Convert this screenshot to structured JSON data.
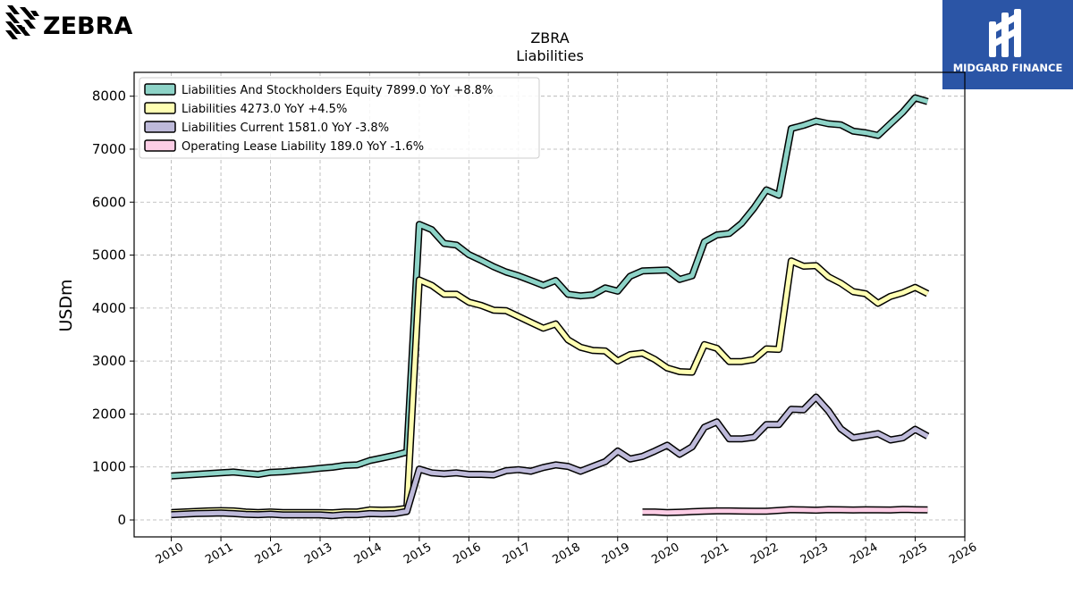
{
  "brand_left": {
    "name": "ZEBRA",
    "icon": "zebra-head-icon"
  },
  "brand_right": {
    "name": "MIDGARD FINANCE",
    "icon": "midgard-monogram-icon",
    "bg_color": "#2b55a6"
  },
  "chart_data": {
    "type": "line",
    "title": "ZBRA",
    "subtitle": "Liabilities",
    "xlabel": "",
    "ylabel": "USDm",
    "xlim": [
      2009.25,
      2026.0
    ],
    "ylim": [
      -320,
      8450
    ],
    "x_ticks": [
      "2010",
      "2011",
      "2012",
      "2013",
      "2014",
      "2015",
      "2016",
      "2017",
      "2018",
      "2019",
      "2020",
      "2021",
      "2022",
      "2023",
      "2024",
      "2025",
      "2026"
    ],
    "y_ticks": [
      "0",
      "1000",
      "2000",
      "3000",
      "4000",
      "5000",
      "6000",
      "7000",
      "8000"
    ],
    "grid": true,
    "legend_position": "top-left",
    "series": [
      {
        "name": "Liabilities And Stockholders Equity",
        "legend": "Liabilities And Stockholders Equity  7899.0 YoY +8.8%",
        "color": "#8dd3c7",
        "points": [
          [
            2010.0,
            830
          ],
          [
            2010.25,
            845
          ],
          [
            2010.5,
            860
          ],
          [
            2010.75,
            875
          ],
          [
            2011.0,
            890
          ],
          [
            2011.25,
            905
          ],
          [
            2011.5,
            880
          ],
          [
            2011.75,
            860
          ],
          [
            2012.0,
            900
          ],
          [
            2012.25,
            910
          ],
          [
            2012.5,
            930
          ],
          [
            2012.75,
            950
          ],
          [
            2013.0,
            975
          ],
          [
            2013.25,
            995
          ],
          [
            2013.5,
            1030
          ],
          [
            2013.75,
            1040
          ],
          [
            2014.0,
            1120
          ],
          [
            2014.25,
            1170
          ],
          [
            2014.5,
            1220
          ],
          [
            2014.75,
            1280
          ],
          [
            2015.0,
            5580
          ],
          [
            2015.25,
            5480
          ],
          [
            2015.5,
            5220
          ],
          [
            2015.75,
            5190
          ],
          [
            2016.0,
            5010
          ],
          [
            2016.25,
            4900
          ],
          [
            2016.5,
            4780
          ],
          [
            2016.75,
            4680
          ],
          [
            2017.0,
            4610
          ],
          [
            2017.25,
            4520
          ],
          [
            2017.5,
            4430
          ],
          [
            2017.75,
            4520
          ],
          [
            2018.0,
            4260
          ],
          [
            2018.25,
            4230
          ],
          [
            2018.5,
            4250
          ],
          [
            2018.75,
            4380
          ],
          [
            2019.0,
            4320
          ],
          [
            2019.25,
            4600
          ],
          [
            2019.5,
            4700
          ],
          [
            2019.75,
            4710
          ],
          [
            2020.0,
            4720
          ],
          [
            2020.25,
            4540
          ],
          [
            2020.5,
            4610
          ],
          [
            2020.75,
            5250
          ],
          [
            2021.0,
            5380
          ],
          [
            2021.25,
            5410
          ],
          [
            2021.5,
            5600
          ],
          [
            2021.75,
            5890
          ],
          [
            2022.0,
            6230
          ],
          [
            2022.25,
            6130
          ],
          [
            2022.5,
            7390
          ],
          [
            2022.75,
            7450
          ],
          [
            2023.0,
            7530
          ],
          [
            2023.25,
            7480
          ],
          [
            2023.5,
            7460
          ],
          [
            2023.75,
            7340
          ],
          [
            2024.0,
            7310
          ],
          [
            2024.25,
            7260
          ],
          [
            2024.5,
            7480
          ],
          [
            2024.75,
            7700
          ],
          [
            2025.0,
            7970
          ],
          [
            2025.25,
            7899
          ]
        ]
      },
      {
        "name": "Liabilities",
        "legend": "Liabilities  4273.0 YoY +4.5%",
        "color": "#ffffb3",
        "points": [
          [
            2010.0,
            140
          ],
          [
            2010.25,
            150
          ],
          [
            2010.5,
            160
          ],
          [
            2010.75,
            170
          ],
          [
            2011.0,
            175
          ],
          [
            2011.25,
            170
          ],
          [
            2011.5,
            150
          ],
          [
            2011.75,
            140
          ],
          [
            2012.0,
            150
          ],
          [
            2012.25,
            140
          ],
          [
            2012.5,
            140
          ],
          [
            2012.75,
            140
          ],
          [
            2013.0,
            140
          ],
          [
            2013.25,
            135
          ],
          [
            2013.5,
            150
          ],
          [
            2013.75,
            150
          ],
          [
            2014.0,
            190
          ],
          [
            2014.25,
            185
          ],
          [
            2014.5,
            190
          ],
          [
            2014.75,
            220
          ],
          [
            2015.0,
            4530
          ],
          [
            2015.25,
            4430
          ],
          [
            2015.5,
            4260
          ],
          [
            2015.75,
            4260
          ],
          [
            2016.0,
            4110
          ],
          [
            2016.25,
            4050
          ],
          [
            2016.5,
            3960
          ],
          [
            2016.75,
            3950
          ],
          [
            2017.0,
            3840
          ],
          [
            2017.25,
            3730
          ],
          [
            2017.5,
            3620
          ],
          [
            2017.75,
            3700
          ],
          [
            2018.0,
            3400
          ],
          [
            2018.25,
            3260
          ],
          [
            2018.5,
            3200
          ],
          [
            2018.75,
            3190
          ],
          [
            2019.0,
            3000
          ],
          [
            2019.25,
            3120
          ],
          [
            2019.5,
            3150
          ],
          [
            2019.75,
            3030
          ],
          [
            2020.0,
            2870
          ],
          [
            2020.25,
            2800
          ],
          [
            2020.5,
            2790
          ],
          [
            2020.75,
            3310
          ],
          [
            2021.0,
            3240
          ],
          [
            2021.25,
            2990
          ],
          [
            2021.5,
            2990
          ],
          [
            2021.75,
            3030
          ],
          [
            2022.0,
            3230
          ],
          [
            2022.25,
            3220
          ],
          [
            2022.5,
            4890
          ],
          [
            2022.75,
            4790
          ],
          [
            2023.0,
            4800
          ],
          [
            2023.25,
            4590
          ],
          [
            2023.5,
            4470
          ],
          [
            2023.75,
            4310
          ],
          [
            2024.0,
            4270
          ],
          [
            2024.25,
            4090
          ],
          [
            2024.5,
            4220
          ],
          [
            2024.75,
            4290
          ],
          [
            2025.0,
            4390
          ],
          [
            2025.25,
            4273
          ]
        ]
      },
      {
        "name": "Liabilities Current",
        "legend": "Liabilities Current  1581.0 YoY -3.8%",
        "color": "#bebada",
        "points": [
          [
            2010.0,
            100
          ],
          [
            2010.25,
            110
          ],
          [
            2010.5,
            120
          ],
          [
            2010.75,
            125
          ],
          [
            2011.0,
            130
          ],
          [
            2011.25,
            120
          ],
          [
            2011.5,
            105
          ],
          [
            2011.75,
            100
          ],
          [
            2012.0,
            110
          ],
          [
            2012.25,
            95
          ],
          [
            2012.5,
            95
          ],
          [
            2012.75,
            95
          ],
          [
            2013.0,
            95
          ],
          [
            2013.25,
            80
          ],
          [
            2013.5,
            100
          ],
          [
            2013.75,
            100
          ],
          [
            2014.0,
            120
          ],
          [
            2014.25,
            115
          ],
          [
            2014.5,
            120
          ],
          [
            2014.75,
            160
          ],
          [
            2015.0,
            960
          ],
          [
            2015.25,
            890
          ],
          [
            2015.5,
            870
          ],
          [
            2015.75,
            890
          ],
          [
            2016.0,
            860
          ],
          [
            2016.25,
            860
          ],
          [
            2016.5,
            850
          ],
          [
            2016.75,
            930
          ],
          [
            2017.0,
            950
          ],
          [
            2017.25,
            920
          ],
          [
            2017.5,
            990
          ],
          [
            2017.75,
            1040
          ],
          [
            2018.0,
            1010
          ],
          [
            2018.25,
            920
          ],
          [
            2018.5,
            1010
          ],
          [
            2018.75,
            1100
          ],
          [
            2019.0,
            1300
          ],
          [
            2019.25,
            1150
          ],
          [
            2019.5,
            1200
          ],
          [
            2019.75,
            1300
          ],
          [
            2020.0,
            1410
          ],
          [
            2020.25,
            1240
          ],
          [
            2020.5,
            1380
          ],
          [
            2020.75,
            1750
          ],
          [
            2021.0,
            1850
          ],
          [
            2021.25,
            1530
          ],
          [
            2021.5,
            1530
          ],
          [
            2021.75,
            1560
          ],
          [
            2022.0,
            1800
          ],
          [
            2022.25,
            1800
          ],
          [
            2022.5,
            2090
          ],
          [
            2022.75,
            2080
          ],
          [
            2023.0,
            2320
          ],
          [
            2023.25,
            2060
          ],
          [
            2023.5,
            1720
          ],
          [
            2023.75,
            1550
          ],
          [
            2024.0,
            1590
          ],
          [
            2024.25,
            1630
          ],
          [
            2024.5,
            1510
          ],
          [
            2024.75,
            1550
          ],
          [
            2025.0,
            1710
          ],
          [
            2025.25,
            1581
          ]
        ]
      },
      {
        "name": "Operating Lease Liability",
        "legend": "Operating Lease Liability  189.0 YoY -1.6%",
        "color": "#fccde5",
        "points": [
          [
            2019.5,
            150
          ],
          [
            2019.75,
            150
          ],
          [
            2020.0,
            140
          ],
          [
            2020.25,
            145
          ],
          [
            2020.5,
            155
          ],
          [
            2020.75,
            165
          ],
          [
            2021.0,
            170
          ],
          [
            2021.25,
            170
          ],
          [
            2021.5,
            168
          ],
          [
            2021.75,
            165
          ],
          [
            2022.0,
            165
          ],
          [
            2022.25,
            180
          ],
          [
            2022.5,
            195
          ],
          [
            2022.75,
            190
          ],
          [
            2023.0,
            185
          ],
          [
            2023.25,
            195
          ],
          [
            2023.5,
            192
          ],
          [
            2023.75,
            188
          ],
          [
            2024.0,
            192
          ],
          [
            2024.25,
            190
          ],
          [
            2024.5,
            188
          ],
          [
            2024.75,
            200
          ],
          [
            2025.0,
            192
          ],
          [
            2025.25,
            189
          ]
        ]
      }
    ]
  }
}
